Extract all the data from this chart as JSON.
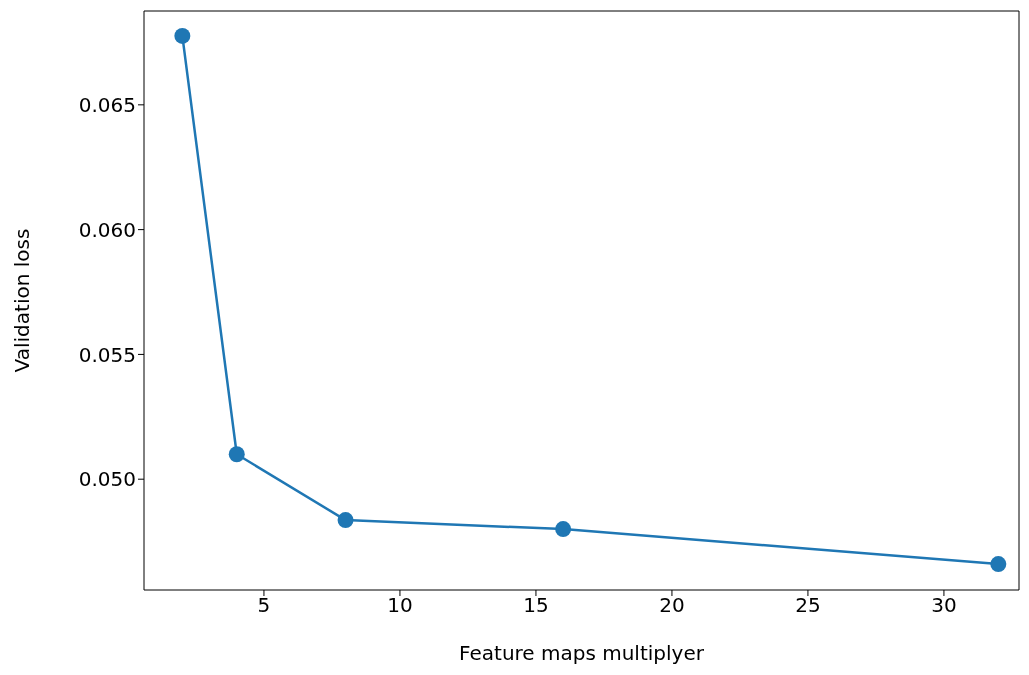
{
  "chart_data": {
    "type": "line",
    "xlabel": "Feature maps multiplyer",
    "ylabel": "Validation loss",
    "x": [
      2,
      4,
      8,
      16,
      32
    ],
    "series": [
      {
        "color": "#1f77b4",
        "values": [
          0.06776,
          0.051,
          0.04836,
          0.048,
          0.0466
        ]
      }
    ],
    "xlim": [
      0.59,
      32.76
    ],
    "xticks": [
      5,
      10,
      15,
      20,
      25,
      30
    ],
    "ylim": [
      0.04556,
      0.06876
    ],
    "yticks": [
      {
        "value": 0.05,
        "label": "0.050"
      },
      {
        "value": 0.055,
        "label": "0.055"
      },
      {
        "value": 0.06,
        "label": "0.060"
      },
      {
        "value": 0.065,
        "label": "0.065"
      }
    ],
    "grid": false,
    "legend": false,
    "marker": "circle",
    "line_style": "solid"
  }
}
